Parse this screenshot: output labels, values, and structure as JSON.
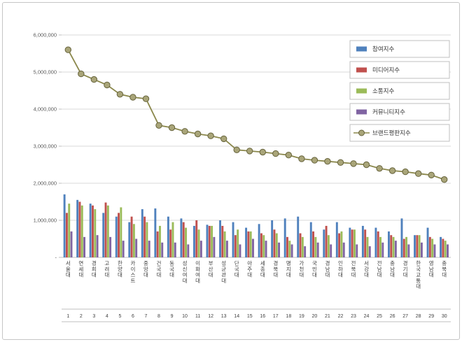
{
  "chart_data": {
    "type": "combo-bar-line",
    "title": "",
    "categories": [
      "서울대",
      "연세대",
      "경희대",
      "고려대",
      "한양대",
      "카이스트",
      "중앙대",
      "건국대",
      "동국대",
      "성신여대",
      "이화여대",
      "부산대",
      "성균관대",
      "단국대",
      "아주대",
      "세종대",
      "경북대",
      "명지대",
      "가천대",
      "국민대",
      "경남대",
      "인하대",
      "전북대",
      "서강대",
      "전남대",
      "충남대",
      "경기대",
      "한국교통대",
      "영남대",
      "충북대"
    ],
    "ranks": [
      "1",
      "2",
      "3",
      "4",
      "5",
      "6",
      "7",
      "8",
      "9",
      "10",
      "11",
      "12",
      "13",
      "14",
      "15",
      "16",
      "17",
      "18",
      "19",
      "20",
      "21",
      "22",
      "23",
      "24",
      "25",
      "26",
      "27",
      "28",
      "29",
      "30"
    ],
    "y_axis": {
      "ticks": [
        "6,000,000",
        "5,000,000",
        "4,000,000",
        "3,000,000",
        "2,000,000",
        "1,000,000",
        "-"
      ],
      "tick_values": [
        6000000,
        5000000,
        4000000,
        3000000,
        2000000,
        1000000,
        0
      ],
      "min": 0,
      "max": 6000000,
      "grid": true
    },
    "legend": {
      "position": "top-right",
      "entries": [
        "참여지수",
        "미디어지수",
        "소통지수",
        "커뮤니티지수",
        "브랜드평판지수"
      ]
    },
    "series": [
      {
        "name": "참여지수",
        "type": "bar",
        "color": "#4F81BD",
        "values": [
          1700000,
          1550000,
          1450000,
          1200000,
          1100000,
          950000,
          1300000,
          1320000,
          1100000,
          1050000,
          850000,
          880000,
          1000000,
          950000,
          800000,
          900000,
          1000000,
          1050000,
          1100000,
          950000,
          750000,
          950000,
          800000,
          850000,
          800000,
          700000,
          1050000,
          600000,
          800000,
          550000
        ]
      },
      {
        "name": "미디어지수",
        "type": "bar",
        "color": "#C0504D",
        "values": [
          1200000,
          1500000,
          1400000,
          1480000,
          1200000,
          1100000,
          1100000,
          700000,
          750000,
          950000,
          1000000,
          850000,
          850000,
          600000,
          700000,
          650000,
          750000,
          550000,
          650000,
          700000,
          850000,
          650000,
          750000,
          750000,
          700000,
          600000,
          500000,
          600000,
          550000,
          500000
        ]
      },
      {
        "name": "소통지수",
        "type": "bar",
        "color": "#9BBB59",
        "values": [
          1450000,
          1400000,
          1300000,
          1400000,
          1350000,
          900000,
          950000,
          850000,
          950000,
          800000,
          750000,
          850000,
          700000,
          750000,
          700000,
          600000,
          650000,
          450000,
          550000,
          550000,
          600000,
          700000,
          750000,
          550000,
          550000,
          550000,
          550000,
          600000,
          500000,
          450000
        ]
      },
      {
        "name": "커뮤니티지수",
        "type": "bar",
        "color": "#8064A2",
        "values": [
          700000,
          550000,
          600000,
          550000,
          450000,
          500000,
          450000,
          400000,
          400000,
          350000,
          450000,
          550000,
          450000,
          350000,
          500000,
          450000,
          400000,
          350000,
          300000,
          400000,
          350000,
          400000,
          350000,
          300000,
          400000,
          450000,
          350000,
          400000,
          350000,
          350000
        ]
      },
      {
        "name": "브랜드평판지수",
        "type": "line",
        "color": "#8B884C",
        "marker_fill": "#A9A579",
        "marker_stroke": "#66633C",
        "values": [
          5600000,
          4950000,
          4800000,
          4650000,
          4400000,
          4320000,
          4280000,
          3560000,
          3500000,
          3400000,
          3330000,
          3280000,
          3200000,
          2900000,
          2870000,
          2840000,
          2800000,
          2760000,
          2660000,
          2620000,
          2590000,
          2560000,
          2530000,
          2500000,
          2400000,
          2340000,
          2310000,
          2260000,
          2220000,
          2100000
        ]
      }
    ],
    "colors": {
      "gridline": "#d9d9d9",
      "axis": "#bfbfbf",
      "tick_text": "#595959",
      "category_text": "#404040",
      "frame_border": "#c6c6c6"
    }
  }
}
